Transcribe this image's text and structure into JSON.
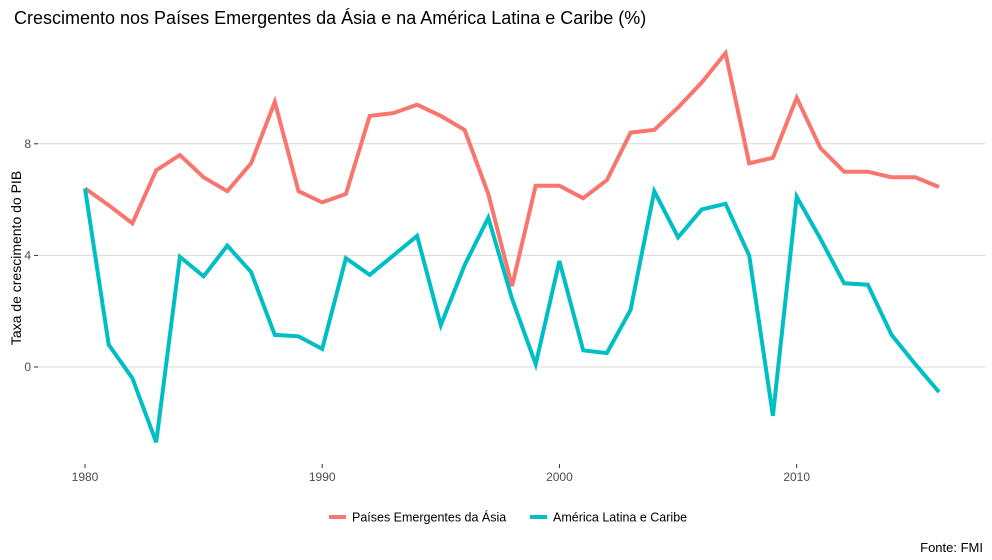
{
  "chart_data": {
    "type": "line",
    "title": "Crescimento nos Países Emergentes da Ásia e na América Latina e Caribe (%)",
    "xlabel": "",
    "ylabel": "Taxa de crescimento do PIB",
    "caption": "Fonte: FMI",
    "x": [
      1980,
      1981,
      1982,
      1983,
      1984,
      1985,
      1986,
      1987,
      1988,
      1989,
      1990,
      1991,
      1992,
      1993,
      1994,
      1995,
      1996,
      1997,
      1998,
      1999,
      2000,
      2001,
      2002,
      2003,
      2004,
      2005,
      2006,
      2007,
      2008,
      2009,
      2010,
      2011,
      2012,
      2013,
      2014,
      2015,
      2016
    ],
    "xlim": [
      1980,
      2016
    ],
    "ylim": [
      -3.3,
      11.9
    ],
    "x_ticks": [
      1980,
      1990,
      2000,
      2010
    ],
    "x_tick_labels": [
      "1980",
      "1990",
      "2000",
      "2010"
    ],
    "y_ticks": [
      0,
      4,
      8
    ],
    "y_tick_labels": [
      "0",
      "4",
      "8"
    ],
    "grid": "horizontal major",
    "legend_position": "bottom",
    "series": [
      {
        "name": "Países Emergentes da Ásia",
        "color": "#F8766D",
        "values": [
          6.4,
          5.8,
          5.15,
          7.05,
          7.6,
          6.8,
          6.3,
          7.3,
          9.5,
          6.3,
          5.9,
          6.2,
          9.0,
          9.1,
          9.4,
          9.0,
          8.5,
          6.2,
          2.9,
          6.5,
          6.5,
          6.05,
          6.7,
          8.4,
          8.5,
          9.3,
          10.2,
          11.25,
          7.3,
          7.5,
          9.65,
          7.85,
          7.0,
          7.0,
          6.8,
          6.8,
          6.45
        ]
      },
      {
        "name": "América Latina e Caribe",
        "color": "#00BFC4",
        "values": [
          6.4,
          0.8,
          -0.4,
          -2.7,
          3.95,
          3.25,
          4.35,
          3.4,
          1.15,
          1.1,
          0.65,
          3.9,
          3.3,
          4.0,
          4.7,
          1.5,
          3.65,
          5.35,
          2.45,
          0.1,
          3.8,
          0.6,
          0.5,
          2.05,
          6.3,
          4.65,
          5.65,
          5.85,
          4.0,
          -1.75,
          6.1,
          4.6,
          3.0,
          2.95,
          1.15,
          0.1,
          -0.9
        ]
      }
    ]
  }
}
